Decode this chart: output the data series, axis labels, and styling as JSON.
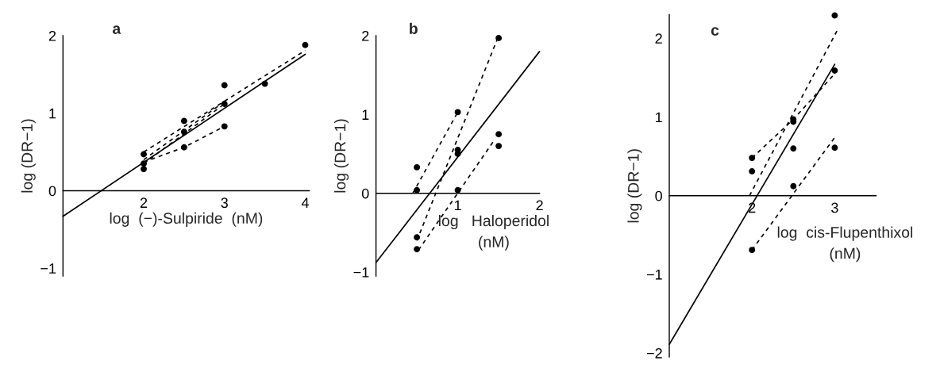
{
  "chart_data": [
    {
      "type": "line",
      "title": "a",
      "xlabel": "log  (−)-Sulpiride  (nM)",
      "ylabel": "log (DR−1)",
      "xlim": [
        1,
        4.05
      ],
      "ylim": [
        -1.1,
        2
      ],
      "xticks": [
        2,
        3,
        4
      ],
      "yticks": [
        -1,
        0,
        1,
        2
      ],
      "series": [
        {
          "type": "scatter",
          "marker": "circle",
          "color": "#000000",
          "x": [
            2,
            2,
            2,
            2.5,
            2.5,
            2.5,
            3,
            3,
            3,
            3.5,
            4
          ],
          "values": [
            0.47,
            0.35,
            0.28,
            0.9,
            0.76,
            0.56,
            1.36,
            1.12,
            0.83,
            1.38,
            1.88
          ]
        },
        {
          "type": "line",
          "line_style": "dashed",
          "color": "#000000",
          "x": [
            2,
            4
          ],
          "values": [
            0.5,
            1.81
          ]
        },
        {
          "type": "line",
          "line_style": "dashed",
          "color": "#000000",
          "x": [
            2,
            3
          ],
          "values": [
            0.4,
            1.15
          ]
        },
        {
          "type": "line",
          "line_style": "dashed",
          "color": "#000000",
          "x": [
            2,
            3
          ],
          "values": [
            0.35,
            1.12
          ]
        },
        {
          "type": "line",
          "line_style": "dashed",
          "color": "#000000",
          "x": [
            2,
            2.5,
            3
          ],
          "values": [
            0.37,
            0.56,
            0.83
          ]
        },
        {
          "type": "line",
          "line_style": "solid",
          "color": "#000000",
          "x": [
            1,
            4
          ],
          "values": [
            -0.33,
            1.76
          ]
        }
      ]
    },
    {
      "type": "line",
      "title": "b",
      "xlabel": "log   Haloperidol\n(nM)",
      "ylabel": "log (DR−1)",
      "xlim": [
        0,
        2
      ],
      "ylim": [
        -1.05,
        2
      ],
      "xticks": [
        1,
        2
      ],
      "yticks": [
        -1,
        0,
        1,
        2
      ],
      "series": [
        {
          "type": "scatter",
          "marker": "circle",
          "color": "#000000",
          "x": [
            0.5,
            0.5,
            0.5,
            0.5,
            1,
            1,
            1,
            1,
            1.5,
            1.5,
            1.5
          ],
          "values": [
            0.33,
            0.04,
            -0.56,
            -0.71,
            1.03,
            0.55,
            0.5,
            0.04,
            1.97,
            0.75,
            0.6
          ]
        },
        {
          "type": "line",
          "line_style": "dashed",
          "color": "#000000",
          "x": [
            0.45,
            1
          ],
          "values": [
            0,
            1.03
          ]
        },
        {
          "type": "line",
          "line_style": "dashed",
          "color": "#000000",
          "x": [
            0.5,
            1.5
          ],
          "values": [
            -0.6,
            2.0
          ]
        },
        {
          "type": "line",
          "line_style": "dashed",
          "color": "#000000",
          "x": [
            0.52,
            1.45
          ],
          "values": [
            -0.72,
            0.68
          ]
        },
        {
          "type": "line",
          "line_style": "solid",
          "color": "#000000",
          "x": [
            0,
            2
          ],
          "values": [
            -0.88,
            1.8
          ]
        }
      ]
    },
    {
      "type": "line",
      "title": "c",
      "xlabel": "log  cis-Flupenthixol\n(nM)",
      "ylabel": "log (DR−1)",
      "xlim": [
        1,
        3.5
      ],
      "ylim": [
        -2.05,
        2.3
      ],
      "xticks": [
        2,
        3
      ],
      "yticks": [
        -2,
        -1,
        0,
        1,
        2
      ],
      "series": [
        {
          "type": "scatter",
          "marker": "circle",
          "color": "#000000",
          "x": [
            2,
            2,
            2,
            2.5,
            2.5,
            2.5,
            2.5,
            3,
            3,
            3
          ],
          "values": [
            0.48,
            0.31,
            -0.69,
            0.97,
            0.94,
            0.6,
            0.12,
            2.29,
            1.59,
            0.61
          ]
        },
        {
          "type": "line",
          "line_style": "dashed",
          "color": "#000000",
          "x": [
            2,
            2.5,
            3
          ],
          "values": [
            0.48,
            0.97,
            1.55
          ]
        },
        {
          "type": "line",
          "line_style": "dashed",
          "color": "#000000",
          "x": [
            1.97,
            3.03
          ],
          "values": [
            0,
            2.1
          ]
        },
        {
          "type": "line",
          "line_style": "dashed",
          "color": "#000000",
          "x": [
            2,
            3
          ],
          "values": [
            -0.69,
            0.74
          ]
        },
        {
          "type": "line",
          "line_style": "solid",
          "color": "#000000",
          "x": [
            1,
            3
          ],
          "values": [
            -1.89,
            1.67
          ]
        }
      ]
    }
  ]
}
